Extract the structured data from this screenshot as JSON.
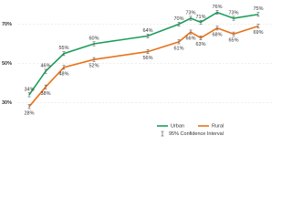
{
  "chart_data": {
    "type": "line",
    "categories": [
      null,
      null,
      null,
      null,
      null,
      null,
      null,
      null,
      null,
      null,
      null
    ],
    "series": [
      {
        "name": "Urban",
        "color": "#1a9e5a",
        "values": [
          34,
          46,
          55,
          60,
          64,
          70,
          73,
          71,
          76,
          73,
          75
        ],
        "errors": [
          1,
          1,
          1,
          1,
          1,
          1,
          1,
          1,
          1,
          1,
          1
        ],
        "value_labels": [
          "34%",
          "46%",
          "55%",
          "60%",
          "64%",
          "70%",
          "73%",
          "71%",
          "76%",
          "73%",
          "75%"
        ]
      },
      {
        "name": "Rural",
        "color": "#e8731a",
        "values": [
          28,
          38,
          48,
          52,
          56,
          61,
          66,
          63,
          68,
          65,
          69
        ],
        "errors": [
          1,
          1,
          1,
          1,
          1,
          1,
          1,
          1,
          1,
          1,
          1
        ],
        "value_labels": [
          "28%",
          "38%",
          "48%",
          "52%",
          "56%",
          "61%",
          "66%",
          "63%",
          "68%",
          "65%",
          "69%"
        ]
      }
    ],
    "ci_label": "95% Confidence Interval",
    "ylim": [
      20,
      80
    ],
    "yticks": [
      {
        "value": 30,
        "label": "30%"
      },
      {
        "value": 50,
        "label": "50%"
      },
      {
        "value": 70,
        "label": "70%"
      }
    ],
    "grid": true
  }
}
